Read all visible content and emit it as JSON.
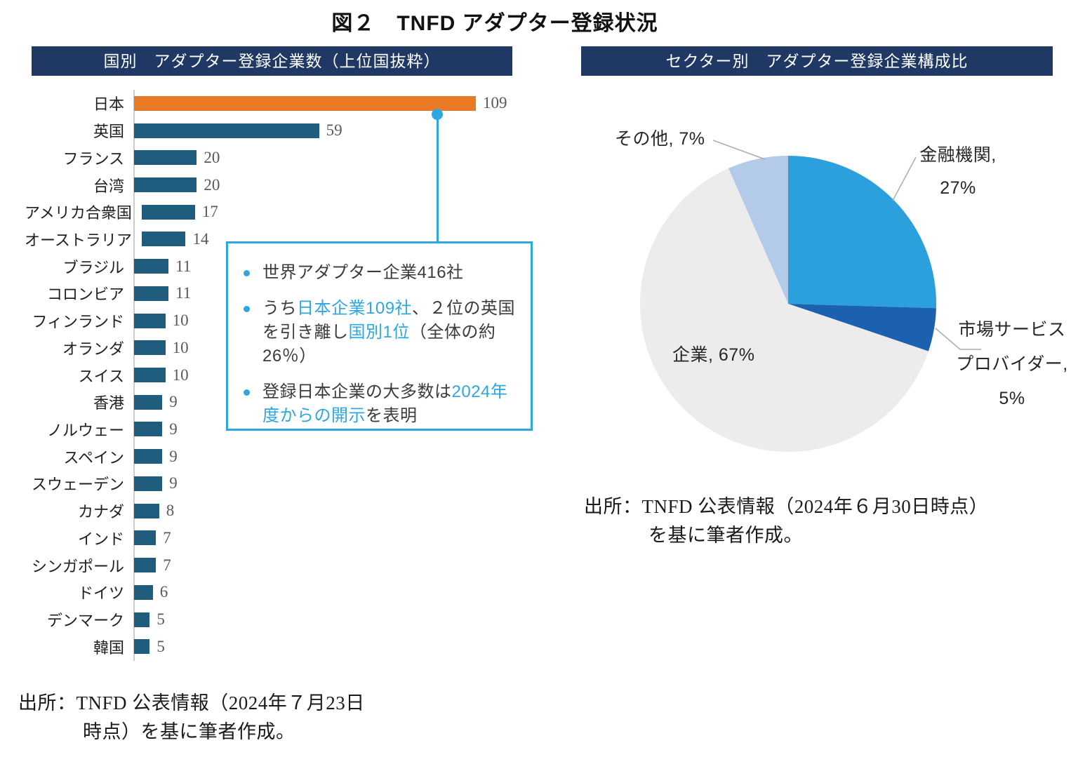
{
  "title": "図２　TNFD アダプター登録状況",
  "left_panel": {
    "header": "国別　アダプター登録企業数（上位国抜粋）",
    "source_line1": "出所：TNFD 公表情報（2024年７月23日",
    "source_line2": "時点）を基に筆者作成。"
  },
  "right_panel": {
    "header": "セクター別　アダプター登録企業構成比",
    "source_line1": "出所：TNFD 公表情報（2024年６月30日時点）",
    "source_line2": "を基に筆者作成。"
  },
  "callout": {
    "bullets": [
      [
        {
          "t": "世界アダプター企業416社",
          "hl": false
        }
      ],
      [
        {
          "t": "うち",
          "hl": false
        },
        {
          "t": "日本企業109社",
          "hl": true
        },
        {
          "t": "、２位の英国を引き離し",
          "hl": false
        },
        {
          "t": "国別1位",
          "hl": true
        },
        {
          "t": "（全体の約26％）",
          "hl": false
        }
      ],
      [
        {
          "t": "登録日本企業の大多数は",
          "hl": false
        },
        {
          "t": "2024年度からの開示",
          "hl": true
        },
        {
          "t": "を表明",
          "hl": false
        }
      ]
    ]
  },
  "pie_labels": {
    "other": "その他, 7%",
    "finance_line1": "金融機関,",
    "finance_line2": "27%",
    "corp": "企業, 67%",
    "market_line1": "市場サービス",
    "market_line2": "プロバイダー,",
    "market_line3": "5%"
  },
  "colors": {
    "header_navy": "#1F3864",
    "bar_teal": "#1F5C7D",
    "bar_orange": "#E87A25",
    "accent_blue": "#2EA7E0",
    "value_gray": "#595959",
    "leader_gray": "#ABABAB"
  },
  "chart_data": [
    {
      "type": "bar",
      "orientation": "horizontal",
      "title": "国別　アダプター登録企業数（上位国抜粋）",
      "categories": [
        "日本",
        "英国",
        "フランス",
        "台湾",
        "アメリカ合衆国",
        "オーストラリア",
        "ブラジル",
        "コロンビア",
        "フィンランド",
        "オランダ",
        "スイス",
        "香港",
        "ノルウェー",
        "スペイン",
        "スウェーデン",
        "カナダ",
        "インド",
        "シンガポール",
        "ドイツ",
        "デンマーク",
        "韓国"
      ],
      "values": [
        109,
        59,
        20,
        20,
        17,
        14,
        11,
        11,
        10,
        10,
        10,
        9,
        9,
        9,
        9,
        8,
        7,
        7,
        6,
        5,
        5
      ],
      "highlight_category": "日本",
      "bar_color": "#1F5C7D",
      "highlight_color": "#E87A25",
      "xlim": [
        0,
        120
      ],
      "grid": false,
      "value_labels": true
    },
    {
      "type": "pie",
      "title": "セクター別　アダプター登録企業構成比",
      "start_angle_deg": 0,
      "direction": "clockwise",
      "slices": [
        {
          "label": "金融機関",
          "pct_text": "27%",
          "value": 27,
          "color": "#2BA0DC"
        },
        {
          "label": "市場サービスプロバイダー",
          "pct_text": "5%",
          "value": 5,
          "color": "#1C61B0"
        },
        {
          "label": "企業",
          "pct_text": "67%",
          "value": 67,
          "color": "#ECECEC"
        },
        {
          "label": "その他",
          "pct_text": "7%",
          "value": 7,
          "color": "#B3CAE8"
        }
      ],
      "legend": "none",
      "labels_outside": [
        "金融機関",
        "市場サービスプロバイダー",
        "その他"
      ]
    }
  ]
}
